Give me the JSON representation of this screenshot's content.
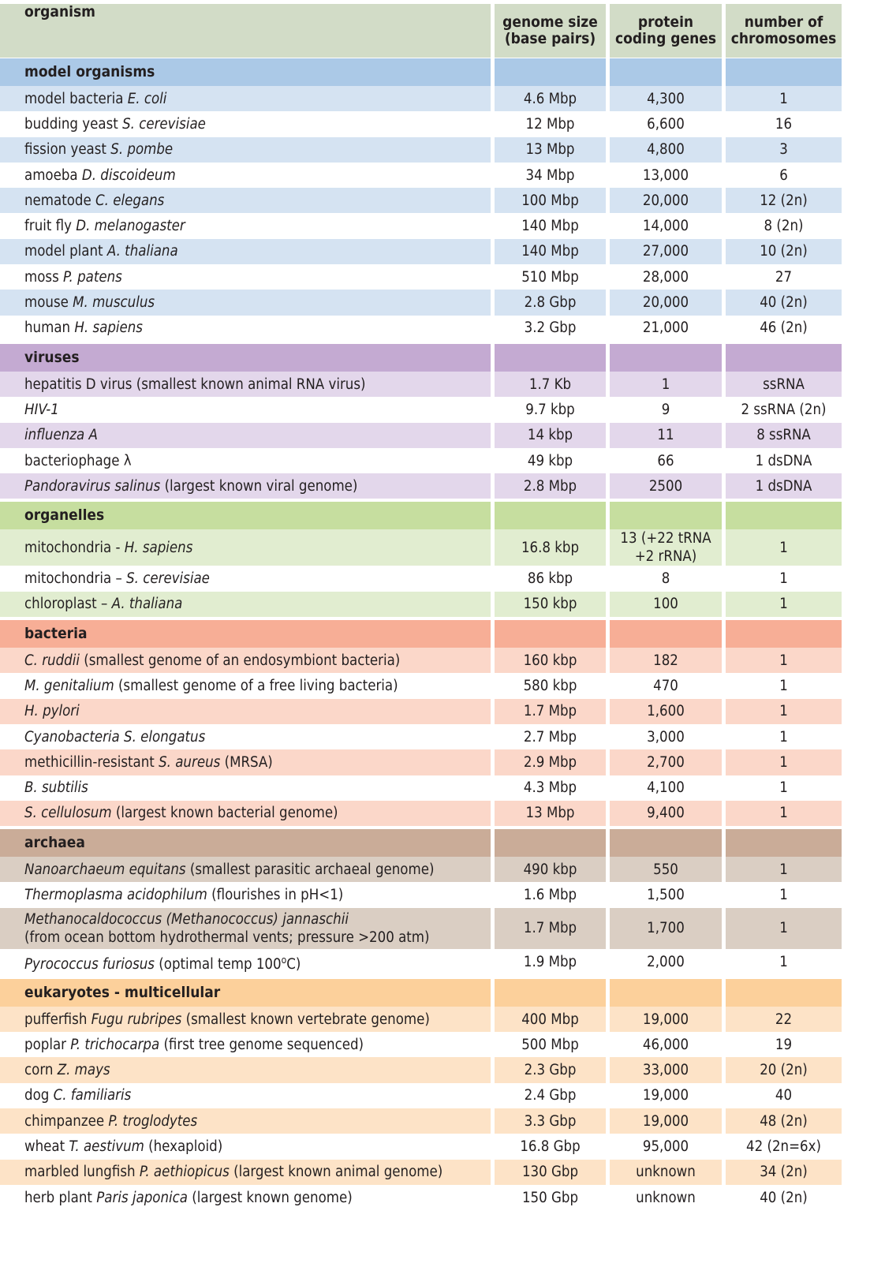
{
  "header": {
    "columns": [
      [
        "organism"
      ],
      [
        "genome size",
        "(base pairs)"
      ],
      [
        "protein",
        "coding genes"
      ],
      [
        "number of",
        "chromosomes"
      ]
    ],
    "color": "#d2dcc7"
  },
  "sections": [
    {
      "title": "model organisms",
      "color": "#abc9e7",
      "row_color": "#d5e3f2",
      "rows": [
        {
          "organism": [
            "model bacteria ",
            {
              "text": "E. coli",
              "italic": true
            }
          ],
          "genome_size": "4.6 Mbp",
          "protein_genes": "4,300",
          "chromosomes": "1"
        },
        {
          "organism": [
            "budding yeast ",
            {
              "text": "S. cerevisiae",
              "italic": true
            }
          ],
          "genome_size": "12 Mbp",
          "protein_genes": "6,600",
          "chromosomes": "16"
        },
        {
          "organism": [
            "fission yeast ",
            {
              "text": "S. pombe",
              "italic": true
            }
          ],
          "genome_size": "13 Mbp",
          "protein_genes": "4,800",
          "chromosomes": "3"
        },
        {
          "organism": [
            "amoeba ",
            {
              "text": "D. discoideum",
              "italic": true
            }
          ],
          "genome_size": "34 Mbp",
          "protein_genes": "13,000",
          "chromosomes": "6"
        },
        {
          "organism": [
            "nematode ",
            {
              "text": "C. elegans",
              "italic": true
            }
          ],
          "genome_size": "100 Mbp",
          "protein_genes": "20,000",
          "chromosomes": "12 (2n)"
        },
        {
          "organism": [
            "fruit fly ",
            {
              "text": "D. melanogaster",
              "italic": true
            }
          ],
          "genome_size": "140 Mbp",
          "protein_genes": "14,000",
          "chromosomes": "8 (2n)"
        },
        {
          "organism": [
            "model plant ",
            {
              "text": "A. thaliana",
              "italic": true
            }
          ],
          "genome_size": "140 Mbp",
          "protein_genes": "27,000",
          "chromosomes": "10 (2n)"
        },
        {
          "organism": [
            "moss ",
            {
              "text": "P. patens",
              "italic": true
            }
          ],
          "genome_size": "510 Mbp",
          "protein_genes": "28,000",
          "chromosomes": "27"
        },
        {
          "organism": [
            "mouse ",
            {
              "text": "M. musculus",
              "italic": true
            }
          ],
          "genome_size": "2.8 Gbp",
          "protein_genes": "20,000",
          "chromosomes": "40 (2n)"
        },
        {
          "organism": [
            "human ",
            {
              "text": "H. sapiens",
              "italic": true
            }
          ],
          "genome_size": "3.2 Gbp",
          "protein_genes": "21,000",
          "chromosomes": "46 (2n)"
        }
      ]
    },
    {
      "title": "viruses",
      "color": "#c4aad2",
      "row_color": "#e3d7eb",
      "rows": [
        {
          "organism": [
            "hepatitis D virus (smallest known animal RNA virus)"
          ],
          "genome_size": "1.7 Kb",
          "protein_genes": "1",
          "chromosomes": "ssRNA"
        },
        {
          "organism": [
            {
              "text": "HIV-1",
              "italic": true
            }
          ],
          "genome_size": "9.7 kbp",
          "protein_genes": "9",
          "chromosomes": "2 ssRNA (2n)"
        },
        {
          "organism": [
            {
              "text": "influenza A",
              "italic": true
            }
          ],
          "genome_size": "14 kbp",
          "protein_genes": "11",
          "chromosomes": "8 ssRNA"
        },
        {
          "organism": [
            "bacteriophage λ"
          ],
          "genome_size": "49 kbp",
          "protein_genes": "66",
          "chromosomes": "1 dsDNA"
        },
        {
          "organism": [
            {
              "text": "Pandoravirus salinus",
              "italic": true
            },
            " (largest known viral genome)"
          ],
          "genome_size": "2.8 Mbp",
          "protein_genes": "2500",
          "chromosomes": "1 dsDNA"
        }
      ]
    },
    {
      "title": "organelles",
      "color": "#c6de9f",
      "row_color": "#e1edd0",
      "rows": [
        {
          "organism": [
            "mitochondria - ",
            {
              "text": "H. sapiens",
              "italic": true
            }
          ],
          "genome_size": "16.8 kbp",
          "protein_genes": "13 (+22 tRNA\n+2 rRNA)",
          "chromosomes": "1"
        },
        {
          "organism": [
            "mitochondria – ",
            {
              "text": "S. cerevisiae",
              "italic": true
            }
          ],
          "genome_size": "86 kbp",
          "protein_genes": "8",
          "chromosomes": "1"
        },
        {
          "organism": [
            "chloroplast – ",
            {
              "text": "A. thaliana",
              "italic": true
            }
          ],
          "genome_size": "150 kbp",
          "protein_genes": "100",
          "chromosomes": "1"
        }
      ]
    },
    {
      "title": "bacteria",
      "color": "#f7ae96",
      "row_color": "#fbd7c9",
      "rows": [
        {
          "organism": [
            {
              "text": "C. ruddii",
              "italic": true
            },
            " (smallest genome of an endosymbiont bacteria)"
          ],
          "genome_size": "160 kbp",
          "protein_genes": "182",
          "chromosomes": "1"
        },
        {
          "organism": [
            {
              "text": "M. genitalium",
              "italic": true
            },
            " (smallest genome of a free living bacteria)"
          ],
          "genome_size": "580 kbp",
          "protein_genes": "470",
          "chromosomes": "1"
        },
        {
          "organism": [
            {
              "text": "H. pylori",
              "italic": true
            }
          ],
          "genome_size": "1.7 Mbp",
          "protein_genes": "1,600",
          "chromosomes": "1"
        },
        {
          "organism": [
            {
              "text": "Cyanobacteria S. elongatus",
              "italic": true
            }
          ],
          "genome_size": "2.7 Mbp",
          "protein_genes": "3,000",
          "chromosomes": "1"
        },
        {
          "organism": [
            "methicillin-resistant ",
            {
              "text": "S. aureus",
              "italic": true
            },
            " (MRSA)"
          ],
          "genome_size": "2.9 Mbp",
          "protein_genes": "2,700",
          "chromosomes": "1"
        },
        {
          "organism": [
            {
              "text": "B. subtilis",
              "italic": true
            }
          ],
          "genome_size": "4.3 Mbp",
          "protein_genes": "4,100",
          "chromosomes": "1"
        },
        {
          "organism": [
            {
              "text": "S. cellulosum",
              "italic": true
            },
            " (largest known bacterial genome)"
          ],
          "genome_size": "13 Mbp",
          "protein_genes": "9,400",
          "chromosomes": "1"
        }
      ]
    },
    {
      "title": "archaea",
      "color": "#caac98",
      "row_color": "#dacec3",
      "rows": [
        {
          "organism": [
            {
              "text": "Nanoarchaeum equitans",
              "italic": true
            },
            " (smallest parasitic archaeal genome)"
          ],
          "genome_size": "490 kbp",
          "protein_genes": "550",
          "chromosomes": "1"
        },
        {
          "organism": [
            {
              "text": "Thermoplasma acidophilum",
              "italic": true
            },
            " (flourishes in pH<1)"
          ],
          "genome_size": "1.6 Mbp",
          "protein_genes": "1,500",
          "chromosomes": "1"
        },
        {
          "organism": [
            {
              "text": "Methanocaldococcus (Methanococcus) jannaschii",
              "italic": true
            },
            "\n(from ocean bottom hydrothermal vents; pressure >200 atm)"
          ],
          "genome_size": "1.7 Mbp",
          "protein_genes": "1,700",
          "chromosomes": "1"
        },
        {
          "organism": [
            {
              "text": "Pyrococcus furiosus",
              "italic": true
            },
            " (optimal temp 100",
            {
              "text": "o",
              "sup": true
            },
            "C)"
          ],
          "genome_size": "1.9 Mbp",
          "protein_genes": "2,000",
          "chromosomes": "1"
        }
      ]
    },
    {
      "title": "eukaryotes - multicellular",
      "color": "#fcd09b",
      "row_color": "#fde3c7",
      "rows": [
        {
          "organism": [
            "pufferfish ",
            {
              "text": "Fugu rubripes",
              "italic": true
            },
            " (smallest known vertebrate genome)"
          ],
          "genome_size": "400 Mbp",
          "protein_genes": "19,000",
          "chromosomes": "22"
        },
        {
          "organism": [
            "poplar ",
            {
              "text": "P. trichocarpa",
              "italic": true
            },
            " (first tree genome sequenced)"
          ],
          "genome_size": "500 Mbp",
          "protein_genes": "46,000",
          "chromosomes": "19"
        },
        {
          "organism": [
            "corn ",
            {
              "text": "Z. mays",
              "italic": true
            }
          ],
          "genome_size": "2.3 Gbp",
          "protein_genes": "33,000",
          "chromosomes": "20 (2n)"
        },
        {
          "organism": [
            "dog ",
            {
              "text": "C. familiaris",
              "italic": true
            }
          ],
          "genome_size": "2.4 Gbp",
          "protein_genes": "19,000",
          "chromosomes": "40"
        },
        {
          "organism": [
            "chimpanzee ",
            {
              "text": "P. troglodytes",
              "italic": true
            }
          ],
          "genome_size": "3.3 Gbp",
          "protein_genes": "19,000",
          "chromosomes": "48 (2n)"
        },
        {
          "organism": [
            "wheat ",
            {
              "text": "T. aestivum",
              "italic": true
            },
            " (hexaploid)"
          ],
          "genome_size": "16.8 Gbp",
          "protein_genes": "95,000",
          "chromosomes": "42 (2n=6x)"
        },
        {
          "organism": [
            "marbled lungfish ",
            {
              "text": "P. aethiopicus",
              "italic": true
            },
            " (largest known animal genome)"
          ],
          "genome_size": "130 Gbp",
          "protein_genes": "unknown",
          "chromosomes": "34 (2n)"
        },
        {
          "organism": [
            "herb plant ",
            {
              "text": "Paris japonica",
              "italic": true
            },
            " (largest known genome)"
          ],
          "genome_size": "150 Gbp",
          "protein_genes": "unknown",
          "chromosomes": "40 (2n)"
        }
      ]
    }
  ]
}
